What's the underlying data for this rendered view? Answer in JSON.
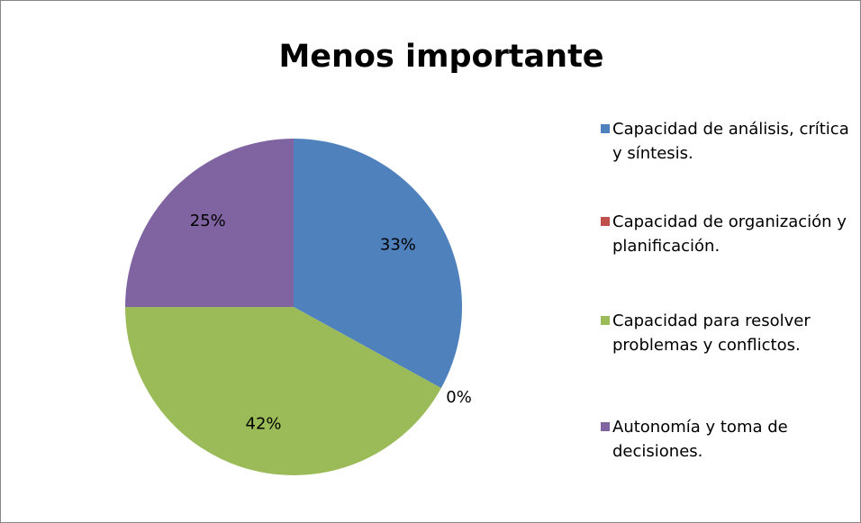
{
  "chart_data": {
    "type": "pie",
    "title": "Menos importante",
    "categories": [
      "Capacidad de análisis, crítica y síntesis.",
      "Capacidad de organización y planificación.",
      "Capacidad para resolver problemas y conflictos.",
      "Autonomía y toma de decisiones."
    ],
    "values": [
      33,
      0,
      42,
      25
    ],
    "value_labels": [
      "33%",
      "0%",
      "42%",
      "25%"
    ],
    "colors": [
      "#4f81bd",
      "#c0504d",
      "#9bbb59",
      "#8064a2"
    ],
    "legend": "right"
  }
}
